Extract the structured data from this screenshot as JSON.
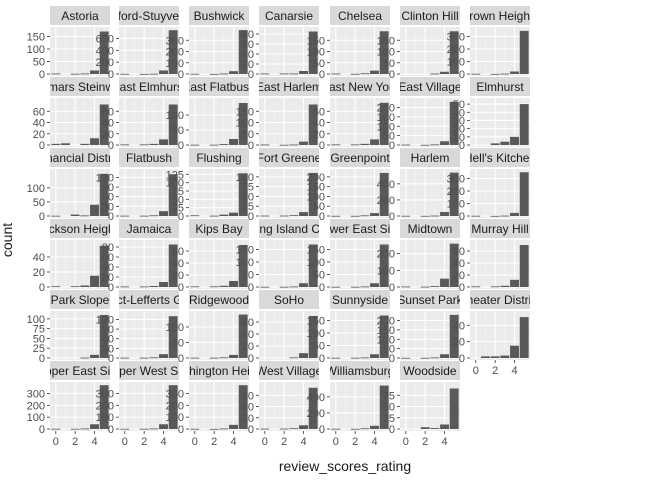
{
  "chart_data": {
    "type": "bar",
    "subtype": "faceted-histogram",
    "xlabel": "review_scores_rating",
    "ylabel": "count",
    "x_ticks": [
      0,
      2,
      4
    ],
    "bins": [
      0,
      1,
      2,
      3,
      4,
      5
    ],
    "colors": {
      "bar": "#595959",
      "panel": "#ebebeb",
      "strip": "#d9d9d9",
      "grid_major": "#ffffff",
      "grid_minor": "#f5f5f5",
      "text": "#4d4d4d",
      "title": "#1a1a1a"
    },
    "facets": [
      {
        "label": "Astoria",
        "y_ticks": [
          0,
          50,
          100,
          150
        ],
        "ylim": [
          0,
          180
        ],
        "values": [
          2,
          0,
          1,
          2,
          14,
          170
        ]
      },
      {
        "label": "Bedford-Stuyvesant",
        "y_ticks": [
          0,
          200,
          400,
          600
        ],
        "ylim": [
          0,
          760
        ],
        "values": [
          3,
          0,
          2,
          5,
          60,
          740
        ]
      },
      {
        "label": "Bushwick",
        "y_ticks": [
          0,
          100,
          200,
          300
        ],
        "ylim": [
          0,
          400
        ],
        "values": [
          2,
          0,
          1,
          4,
          25,
          390
        ]
      },
      {
        "label": "Canarsie",
        "y_ticks": [
          0,
          20,
          40,
          60,
          80
        ],
        "ylim": [
          0,
          90
        ],
        "values": [
          1,
          0,
          1,
          1,
          6,
          85
        ]
      },
      {
        "label": "Chelsea",
        "y_ticks": [
          0,
          50,
          100,
          150
        ],
        "ylim": [
          0,
          200
        ],
        "values": [
          2,
          0,
          1,
          3,
          15,
          190
        ]
      },
      {
        "label": "Clinton Hill",
        "y_ticks": [
          0,
          50,
          100,
          150
        ],
        "ylim": [
          0,
          200
        ],
        "values": [
          0,
          0,
          0,
          2,
          10,
          190
        ]
      },
      {
        "label": "Crown Heights",
        "y_ticks": [
          0,
          100,
          200,
          300
        ],
        "ylim": [
          0,
          360
        ],
        "values": [
          2,
          0,
          1,
          3,
          20,
          345
        ]
      },
      {
        "label": "Ditmars Steinway",
        "y_ticks": [
          0,
          20,
          40,
          60
        ],
        "ylim": [
          0,
          80
        ],
        "values": [
          2,
          3,
          0,
          2,
          12,
          72
        ]
      },
      {
        "label": "East Elmhurst",
        "y_ticks": [
          0,
          20,
          40,
          60
        ],
        "ylim": [
          0,
          80
        ],
        "values": [
          1,
          0,
          1,
          2,
          10,
          72
        ]
      },
      {
        "label": "East Flatbush",
        "y_ticks": [
          0,
          50,
          100
        ],
        "ylim": [
          0,
          150
        ],
        "values": [
          1,
          0,
          1,
          3,
          20,
          140
        ]
      },
      {
        "label": "East Harlem",
        "y_ticks": [
          0,
          50,
          100,
          150
        ],
        "ylim": [
          0,
          200
        ],
        "values": [
          2,
          0,
          1,
          2,
          15,
          180
        ]
      },
      {
        "label": "East New York",
        "y_ticks": [
          0,
          20,
          40,
          60
        ],
        "ylim": [
          0,
          80
        ],
        "values": [
          1,
          0,
          1,
          2,
          10,
          75
        ]
      },
      {
        "label": "East Village",
        "y_ticks": [
          0,
          50,
          100,
          150,
          200
        ],
        "ylim": [
          0,
          240
        ],
        "values": [
          2,
          0,
          1,
          3,
          20,
          230
        ]
      },
      {
        "label": "Elmhurst",
        "y_ticks": [
          0,
          10,
          20,
          30,
          40,
          50
        ],
        "ylim": [
          0,
          55
        ],
        "values": [
          0,
          0,
          2,
          4,
          10,
          50
        ]
      },
      {
        "label": "Financial District",
        "y_ticks": [
          0,
          50,
          100
        ],
        "ylim": [
          0,
          160
        ],
        "values": [
          1,
          0,
          5,
          2,
          40,
          150
        ]
      },
      {
        "label": "Flatbush",
        "y_ticks": [
          0,
          30,
          60,
          90,
          120
        ],
        "ylim": [
          0,
          140
        ],
        "values": [
          1,
          0,
          1,
          2,
          15,
          130
        ]
      },
      {
        "label": "Flushing",
        "y_ticks": [
          0,
          25,
          50,
          75,
          100,
          125
        ],
        "ylim": [
          0,
          135
        ],
        "values": [
          2,
          0,
          1,
          4,
          10,
          128
        ]
      },
      {
        "label": "Fort Greene",
        "y_ticks": [
          0,
          25,
          50,
          75,
          100
        ],
        "ylim": [
          0,
          115
        ],
        "values": [
          1,
          0,
          1,
          2,
          10,
          110
        ]
      },
      {
        "label": "Greenpoint",
        "y_ticks": [
          0,
          50,
          100,
          150,
          200
        ],
        "ylim": [
          0,
          230
        ],
        "values": [
          1,
          0,
          1,
          3,
          15,
          220
        ]
      },
      {
        "label": "Harlem",
        "y_ticks": [
          0,
          200,
          400
        ],
        "ylim": [
          0,
          560
        ],
        "values": [
          3,
          0,
          2,
          5,
          50,
          540
        ]
      },
      {
        "label": "Hell's Kitchen",
        "y_ticks": [
          0,
          100,
          200,
          300
        ],
        "ylim": [
          0,
          360
        ],
        "values": [
          2,
          0,
          1,
          3,
          25,
          350
        ]
      },
      {
        "label": "Jackson Heights",
        "y_ticks": [
          0,
          20,
          40
        ],
        "ylim": [
          0,
          60
        ],
        "values": [
          1,
          0,
          1,
          2,
          15,
          55
        ]
      },
      {
        "label": "Jamaica",
        "y_ticks": [
          0,
          20,
          40,
          60,
          80
        ],
        "ylim": [
          0,
          90
        ],
        "values": [
          1,
          0,
          1,
          2,
          10,
          85
        ]
      },
      {
        "label": "Kips Bay",
        "y_ticks": [
          0,
          20,
          40,
          60
        ],
        "ylim": [
          0,
          75
        ],
        "values": [
          1,
          0,
          1,
          2,
          10,
          70
        ]
      },
      {
        "label": "Long Island City",
        "y_ticks": [
          0,
          50,
          100,
          150
        ],
        "ylim": [
          0,
          180
        ],
        "values": [
          1,
          0,
          1,
          2,
          15,
          170
        ]
      },
      {
        "label": "Lower East Side",
        "y_ticks": [
          0,
          50,
          100,
          150
        ],
        "ylim": [
          0,
          180
        ],
        "values": [
          1,
          0,
          1,
          2,
          15,
          170
        ]
      },
      {
        "label": "Midtown",
        "y_ticks": [
          0,
          100,
          200
        ],
        "ylim": [
          0,
          270
        ],
        "values": [
          3,
          0,
          2,
          5,
          50,
          260
        ]
      },
      {
        "label": "Murray Hill",
        "y_ticks": [
          0,
          20,
          40,
          60
        ],
        "ylim": [
          0,
          75
        ],
        "values": [
          1,
          0,
          1,
          2,
          12,
          70
        ]
      },
      {
        "label": "Park Slope",
        "y_ticks": [
          0,
          25,
          50,
          75,
          100
        ],
        "ylim": [
          0,
          115
        ],
        "values": [
          0,
          0,
          0,
          1,
          8,
          110
        ]
      },
      {
        "label": "Prospect-Lefferts Gardens",
        "y_ticks": [
          0,
          30,
          60,
          90,
          120
        ],
        "ylim": [
          0,
          140
        ],
        "values": [
          1,
          0,
          1,
          2,
          12,
          130
        ]
      },
      {
        "label": "Ridgewood",
        "y_ticks": [
          0,
          50,
          100
        ],
        "ylim": [
          0,
          145
        ],
        "values": [
          1,
          0,
          1,
          2,
          10,
          140
        ]
      },
      {
        "label": "SoHo",
        "y_ticks": [
          0,
          20,
          40,
          60
        ],
        "ylim": [
          0,
          75
        ],
        "values": [
          0,
          0,
          0,
          1,
          8,
          70
        ]
      },
      {
        "label": "Sunnyside",
        "y_ticks": [
          0,
          50,
          100,
          150
        ],
        "ylim": [
          0,
          180
        ],
        "values": [
          1,
          0,
          1,
          2,
          15,
          170
        ]
      },
      {
        "label": "Sunset Park",
        "y_ticks": [
          0,
          50,
          100,
          150,
          200
        ],
        "ylim": [
          0,
          240
        ],
        "values": [
          1,
          0,
          1,
          3,
          20,
          230
        ]
      },
      {
        "label": "Theater District",
        "y_ticks": [
          0,
          20,
          40
        ],
        "ylim": [
          0,
          55
        ],
        "values": [
          0,
          2,
          2,
          3,
          15,
          50
        ]
      },
      {
        "label": "Upper East Side",
        "y_ticks": [
          0,
          100,
          200,
          300
        ],
        "ylim": [
          0,
          380
        ],
        "values": [
          2,
          0,
          2,
          4,
          40,
          370
        ]
      },
      {
        "label": "Upper West Side",
        "y_ticks": [
          0,
          100,
          200,
          300
        ],
        "ylim": [
          0,
          380
        ],
        "values": [
          2,
          0,
          2,
          4,
          40,
          370
        ]
      },
      {
        "label": "Washington Heights",
        "y_ticks": [
          0,
          100,
          200,
          300
        ],
        "ylim": [
          0,
          380
        ],
        "values": [
          2,
          0,
          1,
          4,
          35,
          370
        ]
      },
      {
        "label": "West Village",
        "y_ticks": [
          0,
          30,
          60,
          90
        ],
        "ylim": [
          0,
          120
        ],
        "values": [
          1,
          0,
          1,
          2,
          10,
          110
        ]
      },
      {
        "label": "Williamsburg",
        "y_ticks": [
          0,
          200,
          400
        ],
        "ylim": [
          0,
          560
        ],
        "values": [
          3,
          0,
          2,
          8,
          40,
          540
        ]
      },
      {
        "label": "Woodside",
        "y_ticks": [
          0,
          25,
          50,
          75
        ],
        "ylim": [
          0,
          100
        ],
        "values": [
          0,
          0,
          4,
          2,
          10,
          90
        ]
      }
    ]
  }
}
